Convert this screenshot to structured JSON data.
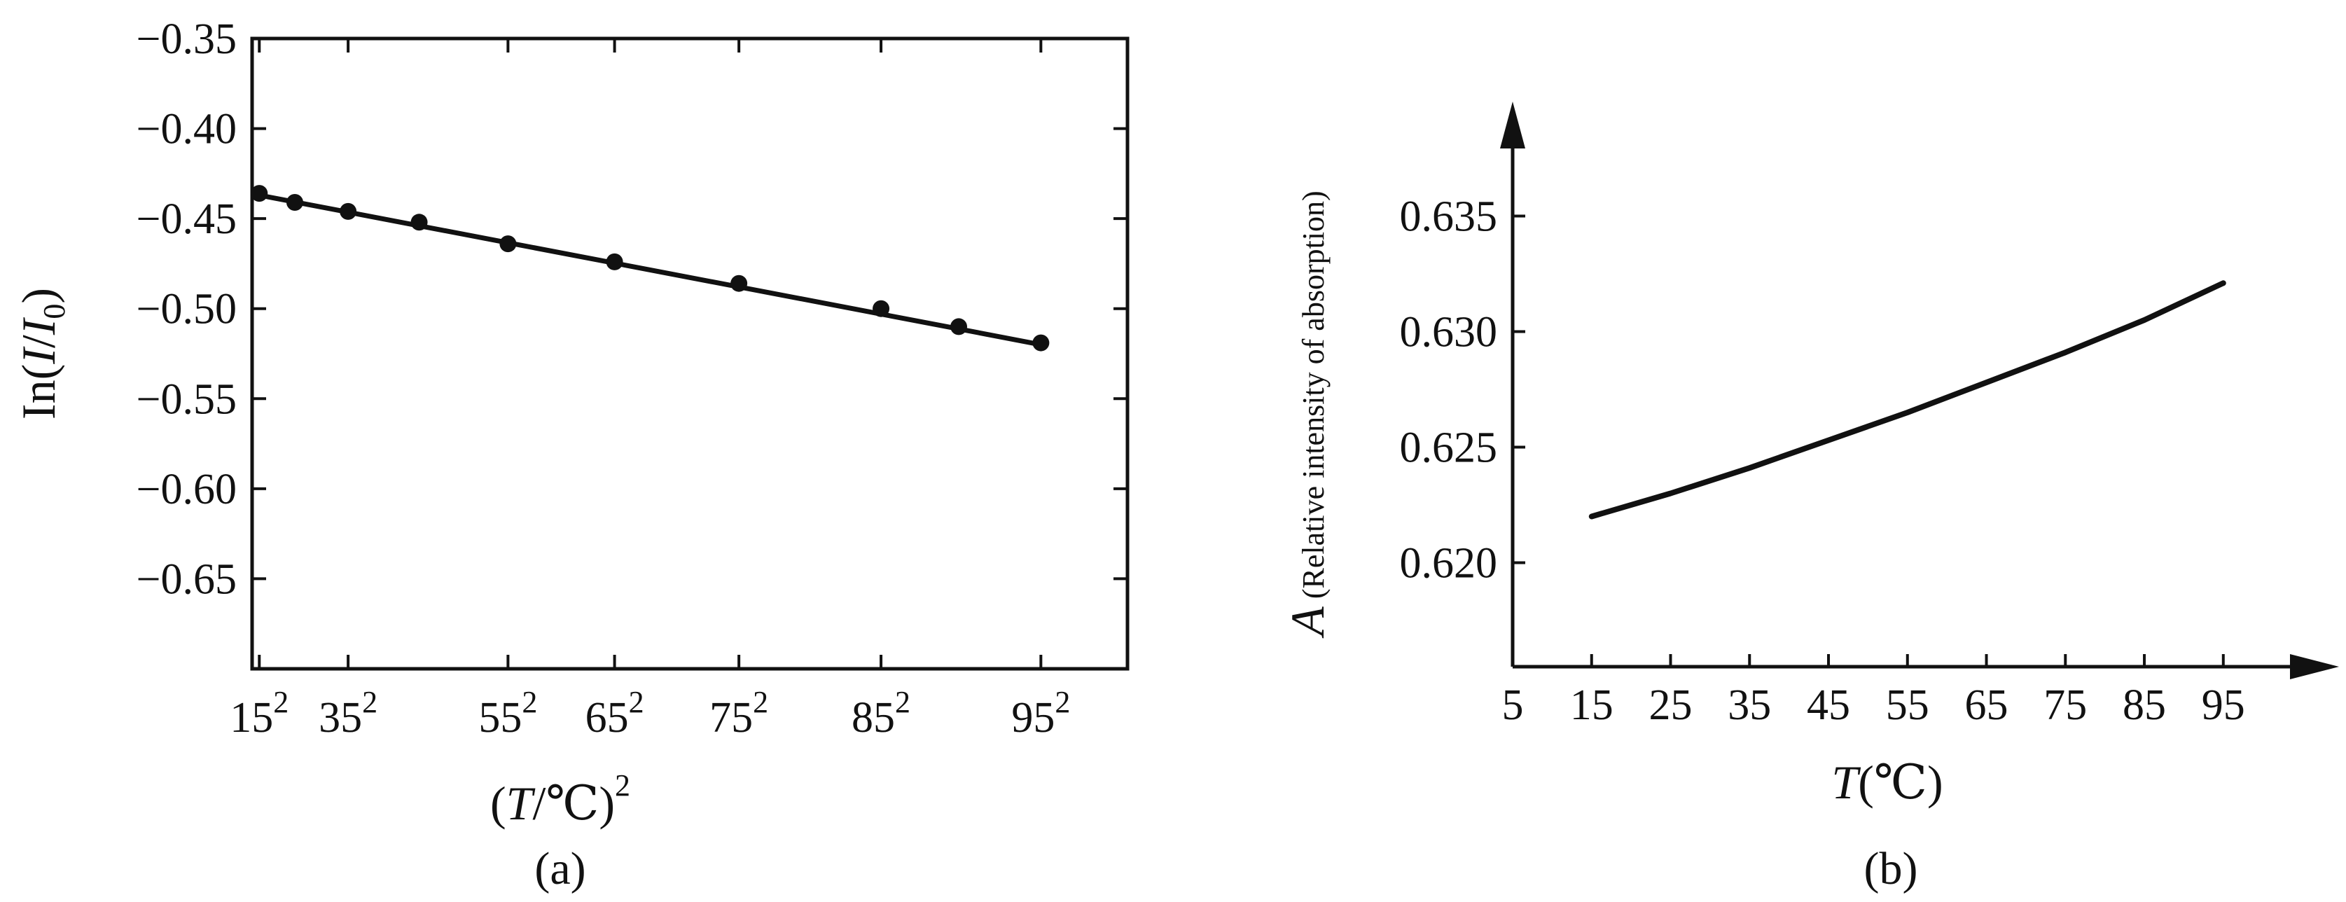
{
  "chart_data": [
    {
      "type": "scatter",
      "caption": "(a)",
      "xlabel": {
        "open": "(",
        "var": "T",
        "unit": "/℃)",
        "sup": "2"
      },
      "ylabel": {
        "prefix": "In(",
        "var1": "I",
        "slash": "/",
        "var2": "I",
        "sub": "0",
        "suffix": ")"
      },
      "xlim": [
        144,
        10000
      ],
      "ylim": [
        -0.7,
        -0.35
      ],
      "grid": false,
      "xticks": [
        {
          "base": "15",
          "sup": "2",
          "value": 225
        },
        {
          "base": "35",
          "sup": "2",
          "value": 1225
        },
        {
          "base": "55",
          "sup": "2",
          "value": 3025
        },
        {
          "base": "65",
          "sup": "2",
          "value": 4225
        },
        {
          "base": "75",
          "sup": "2",
          "value": 5625
        },
        {
          "base": "85",
          "sup": "2",
          "value": 7225
        },
        {
          "base": "95",
          "sup": "2",
          "value": 9025
        }
      ],
      "yticks": [
        {
          "label": "−0.35",
          "value": -0.35
        },
        {
          "label": "−0.40",
          "value": -0.4
        },
        {
          "label": "−0.45",
          "value": -0.45
        },
        {
          "label": "−0.50",
          "value": -0.5
        },
        {
          "label": "−0.55",
          "value": -0.55
        },
        {
          "label": "−0.60",
          "value": -0.6
        },
        {
          "label": "−0.65",
          "value": -0.65
        }
      ],
      "series": [
        {
          "points": [
            [
              225,
              -0.436
            ],
            [
              625,
              -0.441
            ],
            [
              1225,
              -0.446
            ],
            [
              2025,
              -0.452
            ],
            [
              3025,
              -0.464
            ],
            [
              4225,
              -0.474
            ],
            [
              5625,
              -0.486
            ],
            [
              7225,
              -0.5
            ],
            [
              8100,
              -0.51
            ],
            [
              9025,
              -0.519
            ]
          ],
          "fit": [
            [
              225,
              -0.437
            ],
            [
              9025,
              -0.52
            ]
          ]
        }
      ]
    },
    {
      "type": "line",
      "caption": "(b)",
      "xlabel": {
        "var": "T",
        "unit": "(℃)"
      },
      "ylabel": {
        "var": "A",
        "desc": " (Relative intensity of absorption)"
      },
      "xlim": [
        5,
        103
      ],
      "ylim": [
        0.6155,
        0.6395
      ],
      "grid": false,
      "xticks": [
        {
          "label": "5",
          "value": 5
        },
        {
          "label": "15",
          "value": 15
        },
        {
          "label": "25",
          "value": 25
        },
        {
          "label": "35",
          "value": 35
        },
        {
          "label": "45",
          "value": 45
        },
        {
          "label": "55",
          "value": 55
        },
        {
          "label": "65",
          "value": 65
        },
        {
          "label": "75",
          "value": 75
        },
        {
          "label": "85",
          "value": 85
        },
        {
          "label": "95",
          "value": 95
        }
      ],
      "yticks": [
        {
          "label": "0.620",
          "value": 0.62
        },
        {
          "label": "0.625",
          "value": 0.625
        },
        {
          "label": "0.630",
          "value": 0.63
        },
        {
          "label": "0.635",
          "value": 0.635
        }
      ],
      "series": [
        {
          "points": [
            [
              15,
              0.622
            ],
            [
              25,
              0.623
            ],
            [
              35,
              0.6241
            ],
            [
              45,
              0.6253
            ],
            [
              55,
              0.6265
            ],
            [
              65,
              0.6278
            ],
            [
              75,
              0.6291
            ],
            [
              85,
              0.6305
            ],
            [
              95,
              0.6321
            ]
          ]
        }
      ]
    }
  ]
}
